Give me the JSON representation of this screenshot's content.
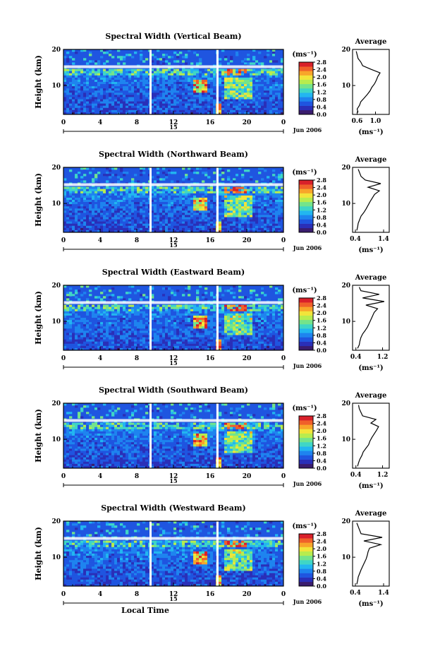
{
  "figure": {
    "shared": {
      "ylabel": "Height (km)",
      "colorbar_unit": "(ms⁻¹)",
      "avg_title": "Average",
      "avg_xlabel": "(ms⁻¹)",
      "date_label": "Jun 2006",
      "xlabel_bottom": "Local Time",
      "day_label": "15"
    },
    "colorbar": {
      "range": [
        0.0,
        2.8
      ],
      "ticks": [
        "0.0",
        "0.4",
        "0.8",
        "1.2",
        "1.6",
        "2.0",
        "2.4",
        "2.8"
      ],
      "colors": [
        "#3a1c6e",
        "#2a2fb8",
        "#1f55e0",
        "#1e84ef",
        "#22b6f0",
        "#3fd6c6",
        "#74e48b",
        "#b8ec4e",
        "#f2e43a",
        "#f8a52a",
        "#f0602a",
        "#d9202a"
      ]
    },
    "colors": {
      "trace": "#000000",
      "axis": "#000000",
      "gap": "#ffffff",
      "background": "#ffffff"
    }
  },
  "chart_data": [
    {
      "type": "heatmap",
      "title": "Spectral Width (Vertical Beam)",
      "xlabel": "",
      "ylabel": "Height (km)",
      "x_ticks": [
        "0",
        "4",
        "8",
        "12",
        "16",
        "20",
        "0"
      ],
      "y_ticks": [
        "10",
        "20"
      ],
      "xlim": [
        0,
        24
      ],
      "ylim": [
        2,
        20
      ],
      "data_gaps_hours": [
        9.5,
        16.8
      ],
      "colorbar_label": "(ms⁻¹)",
      "colorbar_range": [
        0.0,
        2.8
      ],
      "colorbar_ticks": [
        "0.0",
        "0.4",
        "0.8",
        "1.2",
        "1.6",
        "2.0",
        "2.4",
        "2.8"
      ],
      "average_profile": {
        "title": "Average",
        "xlabel": "(ms⁻¹)",
        "x_ticks": [
          "0.6",
          "1.0"
        ],
        "y_ticks": [
          "10",
          "20"
        ],
        "xlim": [
          0.5,
          1.3
        ],
        "ylim": [
          2,
          20
        ],
        "height_km": [
          2.5,
          3.5,
          4.5,
          5.5,
          6.5,
          7.5,
          8.5,
          9.5,
          10.5,
          11.5,
          12.5,
          13.5,
          14.5,
          15.5,
          16.5,
          17.5,
          18.5,
          19.5
        ],
        "width": [
          0.62,
          0.6,
          0.65,
          0.68,
          0.75,
          0.82,
          0.88,
          0.92,
          0.98,
          1.02,
          1.05,
          1.1,
          0.9,
          0.72,
          0.68,
          0.62,
          0.6,
          0.58
        ]
      }
    },
    {
      "type": "heatmap",
      "title": "Spectral Width (Northward Beam)",
      "xlabel": "",
      "ylabel": "Height (km)",
      "x_ticks": [
        "0",
        "4",
        "8",
        "12",
        "16",
        "20",
        "0"
      ],
      "y_ticks": [
        "10",
        "20"
      ],
      "xlim": [
        0,
        24
      ],
      "ylim": [
        2,
        20
      ],
      "data_gaps_hours": [
        9.5,
        16.8
      ],
      "colorbar_label": "(ms⁻¹)",
      "colorbar_range": [
        0.0,
        2.8
      ],
      "colorbar_ticks": [
        "0.0",
        "0.4",
        "0.8",
        "1.2",
        "1.6",
        "2.0",
        "2.4",
        "2.8"
      ],
      "average_profile": {
        "title": "Average",
        "xlabel": "(ms⁻¹)",
        "x_ticks": [
          "0.4",
          "1.4"
        ],
        "y_ticks": [
          "10",
          "20"
        ],
        "xlim": [
          0.3,
          1.6
        ],
        "ylim": [
          2,
          20
        ],
        "height_km": [
          2.5,
          3.5,
          4.5,
          5.5,
          6.5,
          7.5,
          8.5,
          9.5,
          10.5,
          11.5,
          12.5,
          13.5,
          14.5,
          15.5,
          16.5,
          17.5,
          18.5,
          19.5
        ],
        "width": [
          0.45,
          0.48,
          0.5,
          0.55,
          0.6,
          0.7,
          0.78,
          0.85,
          0.92,
          1.0,
          1.08,
          1.25,
          0.85,
          1.3,
          0.75,
          0.6,
          0.55,
          0.5
        ]
      }
    },
    {
      "type": "heatmap",
      "title": "Spectral Width (Eastward Beam)",
      "xlabel": "",
      "ylabel": "Height (km)",
      "x_ticks": [
        "0",
        "4",
        "8",
        "12",
        "16",
        "20",
        "0"
      ],
      "y_ticks": [
        "10",
        "20"
      ],
      "xlim": [
        0,
        24
      ],
      "ylim": [
        2,
        20
      ],
      "data_gaps_hours": [
        9.5,
        16.8
      ],
      "colorbar_label": "(ms⁻¹)",
      "colorbar_range": [
        0.0,
        2.8
      ],
      "colorbar_ticks": [
        "0.0",
        "0.4",
        "0.8",
        "1.2",
        "1.6",
        "2.0",
        "2.4",
        "2.8"
      ],
      "average_profile": {
        "title": "Average",
        "xlabel": "(ms⁻¹)",
        "x_ticks": [
          "0.4",
          "1.2"
        ],
        "y_ticks": [
          "10",
          "20"
        ],
        "xlim": [
          0.3,
          1.4
        ],
        "ylim": [
          2,
          20
        ],
        "height_km": [
          2.5,
          3.5,
          4.5,
          5.5,
          6.5,
          7.5,
          8.5,
          9.5,
          10.5,
          11.5,
          12.5,
          13.5,
          14.5,
          15.5,
          16.5,
          17.5,
          18.5,
          19.5
        ],
        "width": [
          0.45,
          0.5,
          0.52,
          0.55,
          0.6,
          0.68,
          0.75,
          0.8,
          0.85,
          0.9,
          0.95,
          1.05,
          0.7,
          1.25,
          0.6,
          1.1,
          0.55,
          0.5
        ]
      }
    },
    {
      "type": "heatmap",
      "title": "Spectral Width (Southward Beam)",
      "xlabel": "",
      "ylabel": "Height (km)",
      "x_ticks": [
        "0",
        "4",
        "8",
        "12",
        "16",
        "20",
        "0"
      ],
      "y_ticks": [
        "10",
        "20"
      ],
      "xlim": [
        0,
        24
      ],
      "ylim": [
        2,
        20
      ],
      "data_gaps_hours": [
        9.5,
        16.8
      ],
      "colorbar_label": "(ms⁻¹)",
      "colorbar_range": [
        0.0,
        2.8
      ],
      "colorbar_ticks": [
        "0.0",
        "0.4",
        "0.8",
        "1.2",
        "1.6",
        "2.0",
        "2.4",
        "2.8"
      ],
      "average_profile": {
        "title": "Average",
        "xlabel": "(ms⁻¹)",
        "x_ticks": [
          "0.4",
          "1.2"
        ],
        "y_ticks": [
          "10",
          "20"
        ],
        "xlim": [
          0.3,
          1.4
        ],
        "ylim": [
          2,
          20
        ],
        "height_km": [
          2.5,
          3.5,
          4.5,
          5.5,
          6.5,
          7.5,
          8.5,
          9.5,
          10.5,
          11.5,
          12.5,
          13.5,
          14.5,
          15.5,
          16.5,
          17.5,
          18.5,
          19.5
        ],
        "width": [
          0.45,
          0.48,
          0.52,
          0.58,
          0.62,
          0.7,
          0.78,
          0.82,
          0.88,
          0.95,
          1.02,
          1.08,
          0.85,
          1.0,
          0.6,
          0.55,
          0.5,
          0.48
        ]
      }
    },
    {
      "type": "heatmap",
      "title": "Spectral Width (Westward Beam)",
      "xlabel": "Local Time",
      "ylabel": "Height (km)",
      "x_ticks": [
        "0",
        "4",
        "8",
        "12",
        "16",
        "20",
        "0"
      ],
      "y_ticks": [
        "10",
        "20"
      ],
      "xlim": [
        0,
        24
      ],
      "ylim": [
        2,
        20
      ],
      "data_gaps_hours": [
        9.5,
        16.8
      ],
      "colorbar_label": "(ms⁻¹)",
      "colorbar_range": [
        0.0,
        2.8
      ],
      "colorbar_ticks": [
        "0.0",
        "0.4",
        "0.8",
        "1.2",
        "1.6",
        "2.0",
        "2.4",
        "2.8"
      ],
      "average_profile": {
        "title": "Average",
        "xlabel": "(ms⁻¹)",
        "x_ticks": [
          "0.4",
          "1.4"
        ],
        "y_ticks": [
          "10",
          "20"
        ],
        "xlim": [
          0.3,
          1.6
        ],
        "ylim": [
          2,
          20
        ],
        "height_km": [
          2.5,
          3.5,
          4.5,
          5.5,
          6.5,
          7.5,
          8.5,
          9.5,
          10.5,
          11.5,
          12.5,
          13.5,
          14.5,
          15.5,
          16.5,
          17.5,
          18.5,
          19.5
        ],
        "width": [
          0.45,
          0.48,
          0.5,
          0.55,
          0.6,
          0.66,
          0.72,
          0.78,
          0.82,
          0.85,
          0.9,
          1.3,
          0.7,
          1.35,
          0.6,
          0.55,
          0.5,
          0.45
        ]
      }
    }
  ]
}
